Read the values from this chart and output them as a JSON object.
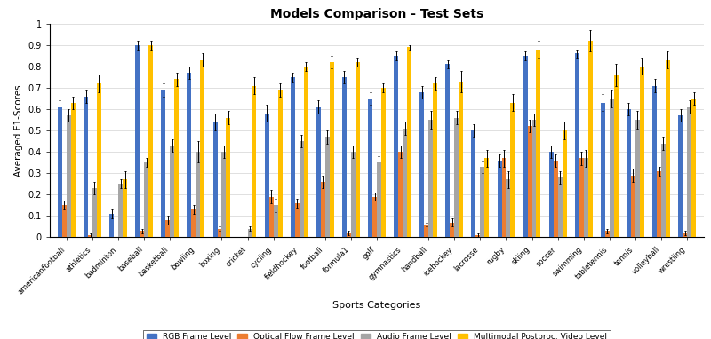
{
  "title": "Models Comparison - Test Sets",
  "xlabel": "Sports Categories",
  "ylabel": "Averaged F1-Scores",
  "categories": [
    "americanfootball",
    "athletics",
    "badminton",
    "baseball",
    "basketball",
    "bowling",
    "boxing",
    "cricket",
    "cycling",
    "fieldhockey",
    "football",
    "formula1",
    "golf",
    "gymnastics",
    "handball",
    "icehockey",
    "lacrosse",
    "rugby",
    "skiing",
    "soccer",
    "swimming",
    "tabletennis",
    "tennis",
    "volleyball",
    "wrestling"
  ],
  "rgb": [
    0.61,
    0.66,
    0.11,
    0.9,
    0.69,
    0.77,
    0.54,
    0.0,
    0.58,
    0.75,
    0.61,
    0.75,
    0.65,
    0.85,
    0.68,
    0.81,
    0.5,
    0.36,
    0.85,
    0.4,
    0.86,
    0.63,
    0.6,
    0.71,
    0.57
  ],
  "optical": [
    0.15,
    0.01,
    0.0,
    0.03,
    0.08,
    0.13,
    0.04,
    0.0,
    0.19,
    0.16,
    0.26,
    0.02,
    0.19,
    0.4,
    0.06,
    0.07,
    0.01,
    0.37,
    0.52,
    0.36,
    0.37,
    0.03,
    0.29,
    0.31,
    0.02
  ],
  "audio": [
    0.57,
    0.23,
    0.25,
    0.35,
    0.43,
    0.4,
    0.4,
    0.04,
    0.15,
    0.45,
    0.47,
    0.4,
    0.35,
    0.51,
    0.55,
    0.56,
    0.33,
    0.27,
    0.55,
    0.28,
    0.37,
    0.65,
    0.55,
    0.44,
    0.61
  ],
  "multimodal": [
    0.63,
    0.72,
    0.27,
    0.9,
    0.74,
    0.83,
    0.56,
    0.71,
    0.69,
    0.8,
    0.82,
    0.82,
    0.7,
    0.89,
    0.72,
    0.73,
    0.37,
    0.63,
    0.88,
    0.5,
    0.92,
    0.76,
    0.8,
    0.83,
    0.65
  ],
  "rgb_err": [
    0.03,
    0.03,
    0.02,
    0.02,
    0.03,
    0.03,
    0.04,
    0.0,
    0.04,
    0.02,
    0.03,
    0.03,
    0.03,
    0.02,
    0.03,
    0.02,
    0.03,
    0.03,
    0.02,
    0.03,
    0.02,
    0.04,
    0.03,
    0.03,
    0.03
  ],
  "optical_err": [
    0.02,
    0.01,
    0.0,
    0.01,
    0.02,
    0.02,
    0.01,
    0.0,
    0.03,
    0.02,
    0.03,
    0.01,
    0.02,
    0.03,
    0.01,
    0.02,
    0.01,
    0.04,
    0.03,
    0.03,
    0.03,
    0.01,
    0.03,
    0.02,
    0.01
  ],
  "audio_err": [
    0.03,
    0.03,
    0.02,
    0.02,
    0.03,
    0.05,
    0.03,
    0.01,
    0.03,
    0.03,
    0.03,
    0.03,
    0.03,
    0.03,
    0.04,
    0.03,
    0.03,
    0.04,
    0.03,
    0.03,
    0.04,
    0.04,
    0.04,
    0.03,
    0.03
  ],
  "multimodal_err": [
    0.03,
    0.04,
    0.04,
    0.02,
    0.03,
    0.03,
    0.03,
    0.04,
    0.03,
    0.02,
    0.03,
    0.02,
    0.02,
    0.01,
    0.03,
    0.05,
    0.04,
    0.04,
    0.04,
    0.04,
    0.05,
    0.05,
    0.04,
    0.04,
    0.03
  ],
  "colors": [
    "#4472C4",
    "#ED7D31",
    "#A5A5A5",
    "#FFC000"
  ],
  "legend_labels": [
    "RGB Frame Level",
    "Optical Flow Frame Level",
    "Audio Frame Level",
    "Multimodal Postproc. Video Level"
  ],
  "ylim": [
    0,
    1.0
  ],
  "yticks": [
    0,
    0.1,
    0.2,
    0.3,
    0.4,
    0.5,
    0.6,
    0.7,
    0.8,
    0.9,
    1
  ],
  "fig_width": 8.0,
  "fig_height": 3.82,
  "dpi": 100,
  "bar_width": 0.17,
  "title_fontsize": 10,
  "axis_label_fontsize": 8,
  "tick_fontsize": 6,
  "legend_fontsize": 6.5
}
